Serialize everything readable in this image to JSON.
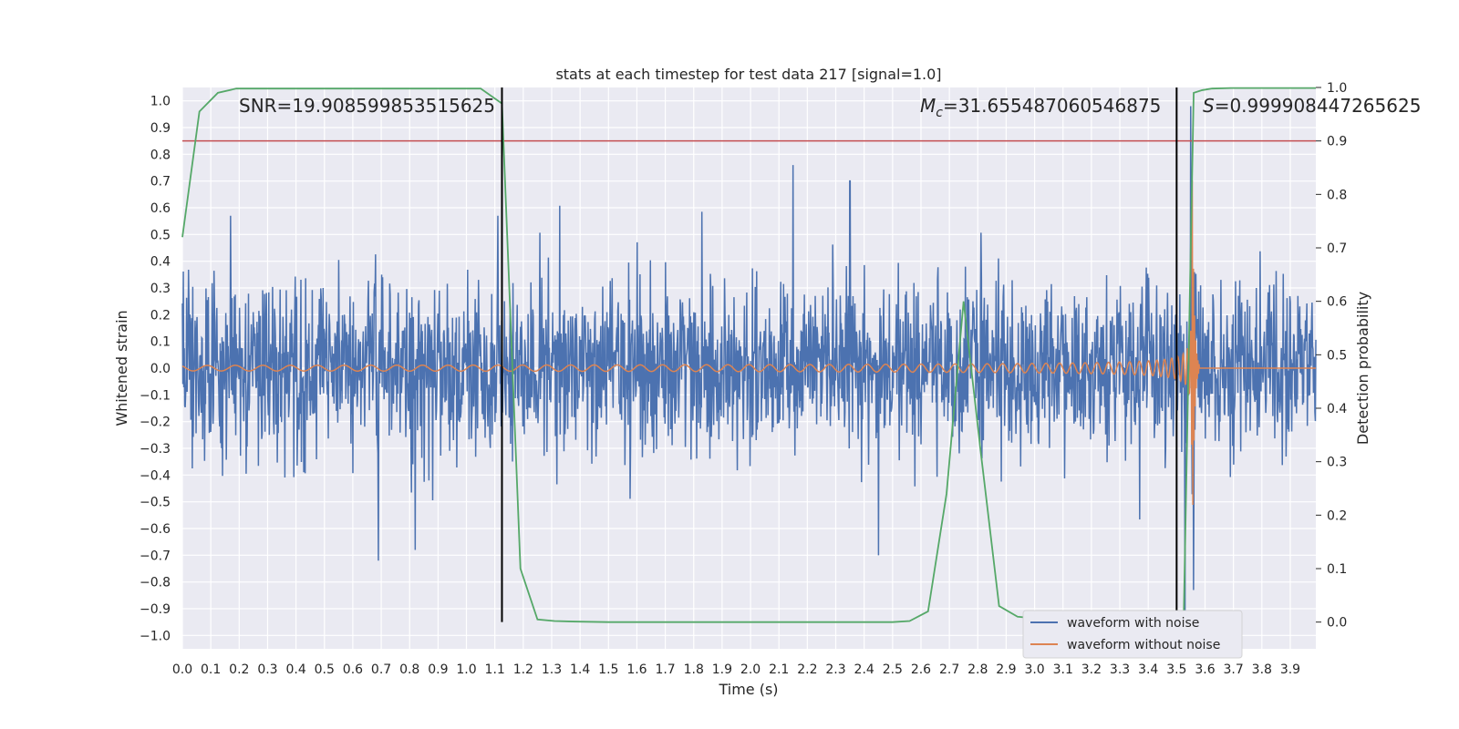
{
  "chart_data": {
    "type": "line",
    "title": "stats at each timestep for test data 217 [signal=1.0]",
    "xlabel": "Time (s)",
    "ylabel": "Whitened strain",
    "y2label": "Detection probability",
    "xlim": [
      0.0,
      3.99
    ],
    "ylim": [
      -1.05,
      1.05
    ],
    "y2lim": [
      -0.05,
      1.0
    ],
    "x_ticks": [
      0.0,
      0.1,
      0.2,
      0.3,
      0.4,
      0.5,
      0.6,
      0.7,
      0.8,
      0.9,
      1.0,
      1.1,
      1.2,
      1.3,
      1.4,
      1.5,
      1.6,
      1.7,
      1.8,
      1.9,
      2.0,
      2.1,
      2.2,
      2.3,
      2.4,
      2.5,
      2.6,
      2.7,
      2.8,
      2.9,
      3.0,
      3.1,
      3.2,
      3.3,
      3.4,
      3.5,
      3.6,
      3.7,
      3.8,
      3.9
    ],
    "x_tick_labels": [
      "0.0",
      "0.1",
      "0.2",
      "0.3",
      "0.4",
      "0.5",
      "0.6",
      "0.7",
      "0.8",
      "0.9",
      "1.0",
      "1.1",
      "1.2",
      "1.3",
      "1.4",
      "1.5",
      "1.6",
      "1.7",
      "1.8",
      "1.9",
      "2.0",
      "2.1",
      "2.2",
      "2.3",
      "2.4",
      "2.5",
      "2.6",
      "2.7",
      "2.8",
      "2.9",
      "3.0",
      "3.1",
      "3.2",
      "3.3",
      "3.4",
      "3.5",
      "3.6",
      "3.7",
      "3.8",
      "3.9"
    ],
    "y_ticks": [
      1.0,
      0.9,
      0.8,
      0.7,
      0.6,
      0.5,
      0.4,
      0.3,
      0.2,
      0.1,
      0.0,
      -0.1,
      -0.2,
      -0.3,
      -0.4,
      -0.5,
      -0.6,
      -0.7,
      -0.8,
      -0.9,
      -1.0
    ],
    "y_tick_labels": [
      "1.0",
      "0.9",
      "0.8",
      "0.7",
      "0.6",
      "0.5",
      "0.4",
      "0.3",
      "0.2",
      "0.1",
      "0.0",
      "−0.1",
      "−0.2",
      "−0.3",
      "−0.4",
      "−0.5",
      "−0.6",
      "−0.7",
      "−0.8",
      "−0.9",
      "−1.0"
    ],
    "y2_ticks": [
      1.0,
      0.9,
      0.8,
      0.7,
      0.6,
      0.5,
      0.4,
      0.3,
      0.2,
      0.1,
      0.0
    ],
    "y2_tick_labels": [
      "1.0",
      "0.9",
      "0.8",
      "0.7",
      "0.6",
      "0.5",
      "0.4",
      "0.3",
      "0.2",
      "0.1",
      "0.0"
    ],
    "grid": true,
    "legend_placement": "lower right",
    "series": [
      {
        "name": "waveform with noise",
        "color": "#4c72b0",
        "axis": "left",
        "note_noise_amplitude": 0.3,
        "peaks": [
          [
            0.17,
            0.57
          ],
          [
            1.11,
            0.57
          ],
          [
            2.15,
            0.76
          ],
          [
            2.35,
            0.7
          ],
          [
            3.55,
            0.98
          ],
          [
            3.53,
            -0.95
          ],
          [
            0.69,
            -0.72
          ],
          [
            0.82,
            -0.68
          ],
          [
            2.45,
            -0.7
          ],
          [
            3.56,
            -0.83
          ]
        ]
      },
      {
        "name": "waveform without noise",
        "color": "#dd8452",
        "axis": "left",
        "chirp": {
          "t_merge": 3.555,
          "f_start": 10.0,
          "amp_start": 0.01,
          "amp_peak": 0.72
        }
      },
      {
        "name": "Detection probability",
        "color": "#55a868",
        "axis": "right",
        "x": [
          0.0,
          0.06,
          0.125,
          0.19,
          1.05,
          1.125,
          1.19,
          1.25,
          1.31,
          1.375,
          1.5,
          2.0,
          2.5,
          2.56,
          2.625,
          2.69,
          2.75,
          2.81,
          2.875,
          2.94,
          3.0,
          3.06,
          3.125,
          3.19,
          3.25,
          3.31,
          3.375,
          3.44,
          3.5,
          3.525,
          3.56,
          3.59,
          3.625,
          3.69,
          3.75,
          3.81,
          3.875,
          3.94,
          3.99
        ],
        "y": [
          0.72,
          0.955,
          0.99,
          0.998,
          0.998,
          0.97,
          0.1,
          0.005,
          0.002,
          0.001,
          0.0,
          0.0,
          0.0,
          0.002,
          0.02,
          0.24,
          0.6,
          0.32,
          0.03,
          0.01,
          0.007,
          0.005,
          0.004,
          0.004,
          0.004,
          0.004,
          0.004,
          0.004,
          0.003,
          0.01,
          0.99,
          0.995,
          0.998,
          0.999,
          0.999,
          0.999,
          0.999,
          0.999,
          0.999
        ]
      }
    ],
    "hlines": [
      {
        "axis": "right",
        "y": 0.9,
        "color": "#c44e52"
      }
    ],
    "vlines": [
      {
        "x": 1.125,
        "color": "#000000"
      },
      {
        "x": 3.5,
        "color": "#000000"
      }
    ],
    "annotations": {
      "snr": "SNR=19.908599853515625",
      "mc_symbol": "M",
      "mc_subscript": "c",
      "mc_value": "=31.655487060546875",
      "s_symbol": "S",
      "s_value": "=0.999908447265625"
    }
  }
}
